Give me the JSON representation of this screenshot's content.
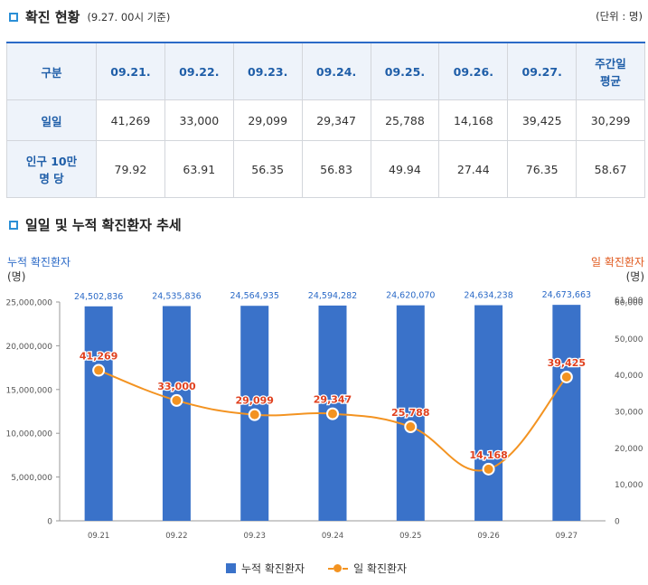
{
  "section1": {
    "title": "확진 현황",
    "subtitle": "(9.27. 00시 기준)",
    "unit": "(단위 : 명)"
  },
  "table": {
    "header": [
      "구분",
      "09.21.",
      "09.22.",
      "09.23.",
      "09.24.",
      "09.25.",
      "09.26.",
      "09.27.",
      "주간일\n평균"
    ],
    "rows": [
      {
        "label": "일일",
        "values": [
          "41,269",
          "33,000",
          "29,099",
          "29,347",
          "25,788",
          "14,168",
          "39,425",
          "30,299"
        ]
      },
      {
        "label": "인구 10만\n명 당",
        "values": [
          "79.92",
          "63.91",
          "56.35",
          "56.83",
          "49.94",
          "27.44",
          "76.35",
          "58.67"
        ]
      }
    ]
  },
  "section2": {
    "title": "일일 및 누적 확진환자 추세"
  },
  "colors": {
    "bar": "#3a72c9",
    "line": "#f39321",
    "line_label": "#e0411f",
    "bar_label": "#2b6ac7",
    "accent": "#2b8fd6"
  },
  "chart_data": {
    "type": "bar",
    "title": "일일 및 누적 확진환자 추세",
    "categories": [
      "09.21",
      "09.22",
      "09.23",
      "09.24",
      "09.25",
      "09.26",
      "09.27"
    ],
    "series": [
      {
        "name": "누적 확진환자",
        "type": "bar",
        "axis": "left",
        "values": [
          24502836,
          24535836,
          24564935,
          24594282,
          24620070,
          24634238,
          24673663
        ],
        "labels": [
          "24,502,836",
          "24,535,836",
          "24,564,935",
          "24,594,282",
          "24,620,070",
          "24,634,238",
          "24,673,663"
        ]
      },
      {
        "name": "일 확진환자",
        "type": "line",
        "axis": "right",
        "values": [
          41269,
          33000,
          29099,
          29347,
          25788,
          14168,
          39425
        ],
        "labels": [
          "41,269",
          "33,000",
          "29,099",
          "29,347",
          "25,788",
          "14,168",
          "39,425"
        ]
      }
    ],
    "ylabel_left": "누적 확진환자",
    "ylabel_left_unit": "(명)",
    "ylabel_right": "일 확진환자",
    "ylabel_right_unit": "(명)",
    "ylim_left": [
      0,
      25000000
    ],
    "ylim_right": [
      0,
      60000
    ],
    "left_ticks": [
      0,
      5000000,
      10000000,
      15000000,
      20000000,
      25000000
    ],
    "left_tick_labels": [
      "0",
      "5,000,000",
      "10,000,000",
      "15,000,000",
      "20,000,000",
      "25,000,000"
    ],
    "right_ticks": [
      0,
      10000,
      20000,
      30000,
      40000,
      50000,
      60000
    ],
    "right_tick_labels": [
      "0",
      "10,000",
      "20,000",
      "30,000",
      "40,000",
      "50,000",
      "60,000"
    ],
    "right_top_label": "61,000",
    "legend": [
      "누적 확진환자",
      "일 확진환자"
    ],
    "legend_position": "bottom-center"
  }
}
